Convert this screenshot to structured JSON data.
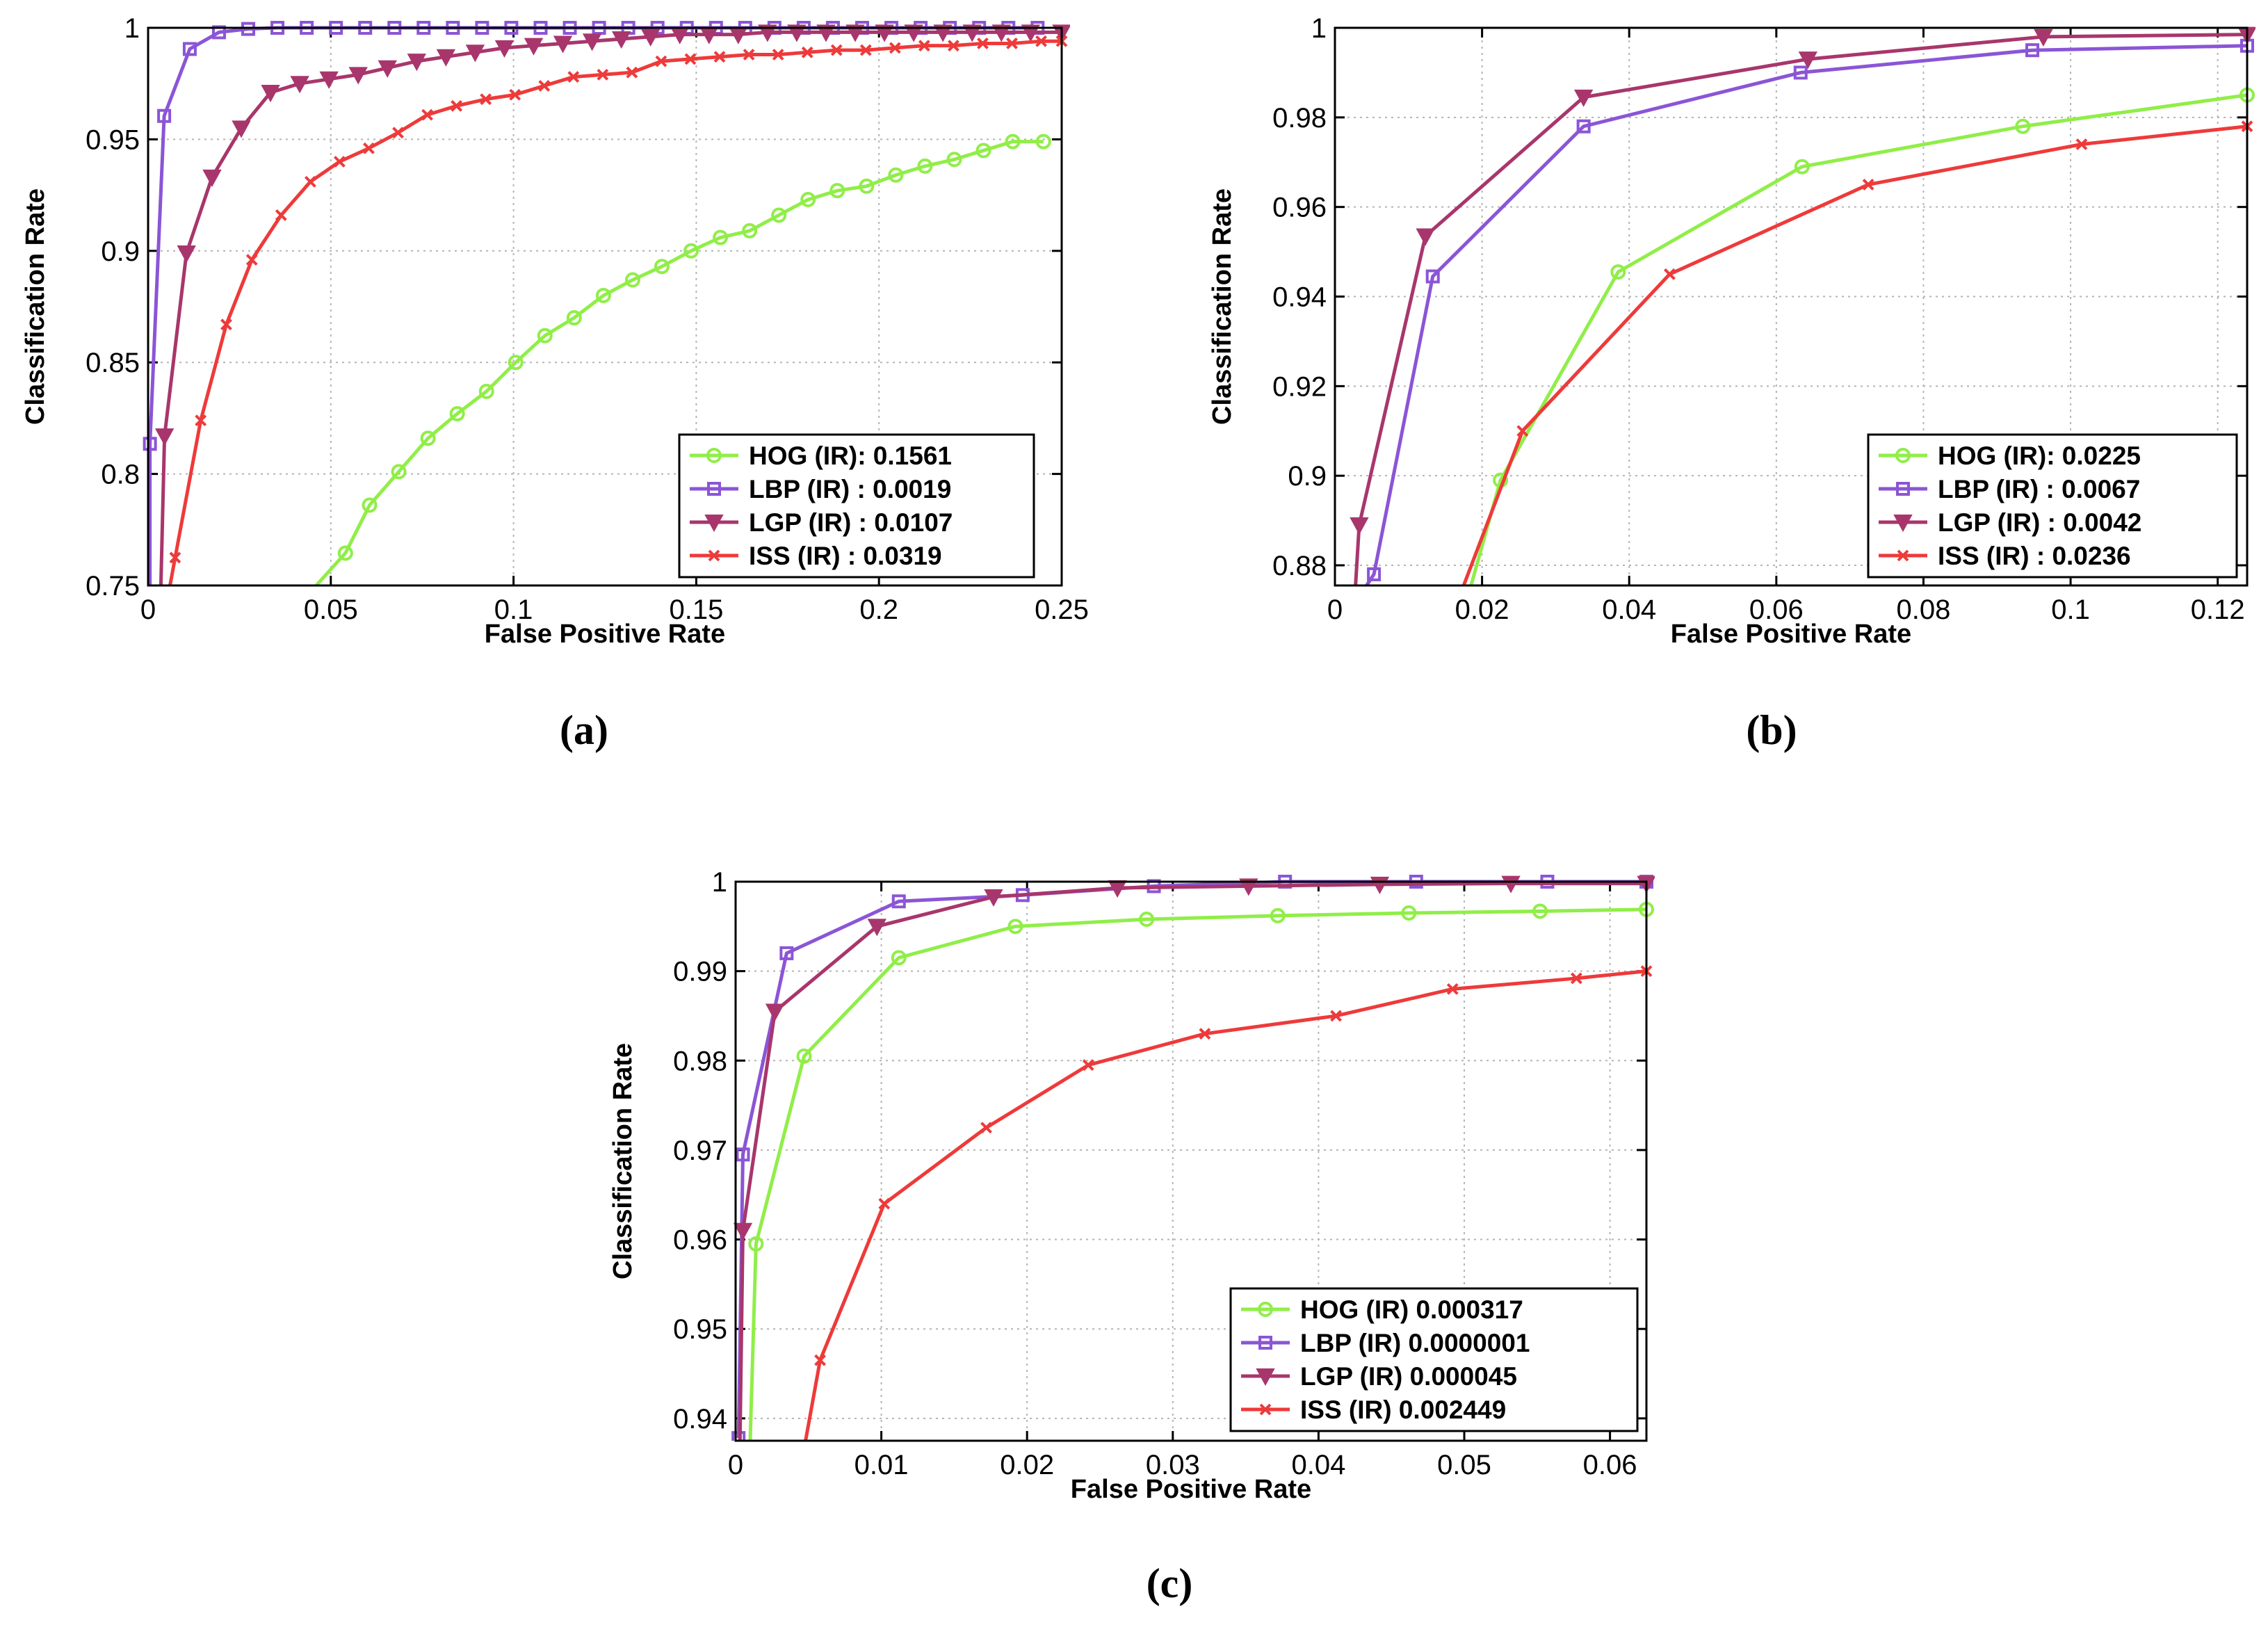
{
  "chart_data": [
    {
      "id": "a",
      "type": "line",
      "caption": "(a)",
      "xlabel": "False Positive Rate",
      "ylabel": "Classification Rate",
      "xlim": [
        0,
        0.25
      ],
      "ylim": [
        0.75,
        1
      ],
      "xticks": [
        "0",
        "0.05",
        "0.1",
        "0.15",
        "0.2",
        "0.25"
      ],
      "yticks": [
        "0.75",
        "0.8",
        "0.85",
        "0.9",
        "0.95",
        "1"
      ],
      "grid": true,
      "legend_position": "bottom-right",
      "series": [
        {
          "name": "HOG (IR): 0.1561",
          "color": "#90ee48",
          "marker": "circle",
          "x": [
            0.046,
            0.054,
            0.0606,
            0.0686,
            0.0766,
            0.0846,
            0.0926,
            0.1006,
            0.1086,
            0.1166,
            0.1246,
            0.1326,
            0.1406,
            0.1486,
            0.1566,
            0.1646,
            0.1726,
            0.1806,
            0.1886,
            0.1966,
            0.2046,
            0.2126,
            0.2206,
            0.2286,
            0.2366,
            0.245
          ],
          "y": [
            0.75,
            0.7645,
            0.786,
            0.801,
            0.816,
            0.827,
            0.837,
            0.85,
            0.862,
            0.87,
            0.88,
            0.887,
            0.893,
            0.9,
            0.906,
            0.909,
            0.916,
            0.923,
            0.927,
            0.929,
            0.934,
            0.938,
            0.941,
            0.945,
            0.949,
            0.949
          ]
        },
        {
          "name": "LBP (IR) : 0.0019",
          "color": "#8b55d6",
          "marker": "square",
          "x": [
            0.0005,
            0.0005,
            0.0044,
            0.0114,
            0.0194,
            0.0274,
            0.0354,
            0.0434,
            0.0514,
            0.0594,
            0.0674,
            0.0754,
            0.0834,
            0.0914,
            0.0994,
            0.1074,
            0.1154,
            0.1234,
            0.1314,
            0.1394,
            0.1474,
            0.1554,
            0.1634,
            0.1714,
            0.1794,
            0.1874,
            0.1954,
            0.2034,
            0.2114,
            0.2194,
            0.2274,
            0.2354,
            0.2434
          ],
          "y": [
            0.75,
            0.8135,
            0.9605,
            0.9905,
            0.998,
            0.9995,
            1,
            1,
            1,
            1,
            1,
            1,
            1,
            1,
            1,
            1,
            1,
            1,
            1,
            1,
            1,
            1,
            1,
            1,
            1,
            1,
            1,
            1,
            1,
            1,
            1,
            1,
            1
          ]
        },
        {
          "name": "LGP (IR) : 0.0107",
          "color": "#a8366c",
          "marker": "triangle",
          "x": [
            0.0035,
            0.0045,
            0.0105,
            0.0175,
            0.0255,
            0.0335,
            0.0415,
            0.0495,
            0.0575,
            0.0655,
            0.0735,
            0.0815,
            0.0895,
            0.0975,
            0.1055,
            0.1135,
            0.1215,
            0.1295,
            0.1375,
            0.1455,
            0.1535,
            0.1615,
            0.1695,
            0.1775,
            0.1855,
            0.1935,
            0.2015,
            0.2095,
            0.2175,
            0.2255,
            0.2335,
            0.2415,
            0.25
          ],
          "y": [
            0.75,
            0.817,
            0.899,
            0.933,
            0.955,
            0.971,
            0.975,
            0.977,
            0.979,
            0.982,
            0.985,
            0.987,
            0.989,
            0.991,
            0.992,
            0.993,
            0.994,
            0.995,
            0.996,
            0.997,
            0.997,
            0.997,
            0.998,
            0.998,
            0.998,
            0.998,
            0.998,
            0.998,
            0.998,
            0.998,
            0.998,
            0.998,
            0.998
          ]
        },
        {
          "name": "ISS (IR) : 0.0319",
          "color": "#ee3a3a",
          "marker": "x",
          "x": [
            0.006,
            0.0074,
            0.0144,
            0.0214,
            0.0284,
            0.0364,
            0.0444,
            0.0524,
            0.0604,
            0.0684,
            0.0764,
            0.0844,
            0.0924,
            0.1004,
            0.1084,
            0.1164,
            0.1244,
            0.1324,
            0.1404,
            0.1484,
            0.1564,
            0.1644,
            0.1724,
            0.1804,
            0.1884,
            0.1964,
            0.2044,
            0.2124,
            0.2204,
            0.2284,
            0.2364,
            0.2444,
            0.25
          ],
          "y": [
            0.75,
            0.7625,
            0.824,
            0.867,
            0.896,
            0.916,
            0.931,
            0.94,
            0.946,
            0.953,
            0.961,
            0.965,
            0.968,
            0.97,
            0.974,
            0.978,
            0.979,
            0.98,
            0.985,
            0.986,
            0.987,
            0.988,
            0.988,
            0.989,
            0.99,
            0.99,
            0.991,
            0.992,
            0.992,
            0.993,
            0.993,
            0.994,
            0.994
          ]
        }
      ]
    },
    {
      "id": "b",
      "type": "line",
      "caption": "(b)",
      "xlabel": "False Positive Rate",
      "ylabel": "Classification Rate",
      "xlim": [
        0,
        0.124
      ],
      "ylim": [
        0.8755,
        1
      ],
      "xticks": [
        "0",
        "0.02",
        "0.04",
        "0.06",
        "0.08",
        "0.1",
        "0.12"
      ],
      "yticks": [
        "0.88",
        "0.9",
        "0.92",
        "0.94",
        "0.96",
        "0.98",
        "1"
      ],
      "grid": true,
      "legend_position": "bottom-right",
      "series": [
        {
          "name": "HOG (IR): 0.0225",
          "color": "#90ee48",
          "marker": "circle",
          "x": [
            0.0185,
            0.0225,
            0.0385,
            0.0635,
            0.0935,
            0.124
          ],
          "y": [
            0.8755,
            0.899,
            0.9455,
            0.969,
            0.978,
            0.985
          ]
        },
        {
          "name": "LBP (IR) : 0.0067",
          "color": "#8b55d6",
          "marker": "square",
          "x": [
            0.0043,
            0.0053,
            0.0133,
            0.0338,
            0.0633,
            0.0948,
            0.124
          ],
          "y": [
            0.8755,
            0.878,
            0.9445,
            0.978,
            0.99,
            0.995,
            0.996
          ]
        },
        {
          "name": "LGP (IR) : 0.0042",
          "color": "#a8366c",
          "marker": "triangle",
          "x": [
            0.0028,
            0.0033,
            0.0123,
            0.0338,
            0.0643,
            0.0963,
            0.124
          ],
          "y": [
            0.8755,
            0.889,
            0.9535,
            0.9845,
            0.993,
            0.998,
            0.9985
          ]
        },
        {
          "name": "ISS (IR) : 0.0236",
          "color": "#ee3a3a",
          "marker": "x",
          "x": [
            0.0175,
            0.0255,
            0.0455,
            0.0725,
            0.1015,
            0.124
          ],
          "y": [
            0.8755,
            0.91,
            0.945,
            0.965,
            0.974,
            0.978
          ]
        }
      ]
    },
    {
      "id": "c",
      "type": "line",
      "caption": "(c)",
      "xlabel": "False Positive Rate",
      "ylabel": "Classification Rate",
      "xlim": [
        0,
        0.0625
      ],
      "ylim": [
        0.9375,
        1
      ],
      "xticks": [
        "0",
        "0.01",
        "0.02",
        "0.03",
        "0.04",
        "0.05",
        "0.06"
      ],
      "yticks": [
        "0.94",
        "0.95",
        "0.96",
        "0.97",
        "0.98",
        "0.99",
        "1"
      ],
      "grid": true,
      "legend_position": "bottom-right",
      "series": [
        {
          "name": "HOG (IR) 0.000317",
          "color": "#90ee48",
          "marker": "circle",
          "x": [
            0.001,
            0.0014,
            0.0047,
            0.0112,
            0.0192,
            0.0282,
            0.0372,
            0.0462,
            0.0552,
            0.0625
          ],
          "y": [
            0.9375,
            0.9595,
            0.9805,
            0.9915,
            0.995,
            0.9958,
            0.9962,
            0.9965,
            0.9967,
            0.9969
          ]
        },
        {
          "name": "LBP (IR) 0.0000001",
          "color": "#8b55d6",
          "marker": "square",
          "x": [
            0.0002,
            0.0005,
            0.0035,
            0.0112,
            0.0197,
            0.0287,
            0.0377,
            0.0467,
            0.0557,
            0.0625
          ],
          "y": [
            0.9378,
            0.9695,
            0.992,
            0.9978,
            0.9985,
            0.9995,
            1,
            1,
            1,
            1
          ]
        },
        {
          "name": "LGP (IR) 0.000045",
          "color": "#a8366c",
          "marker": "triangle",
          "x": [
            0.0003,
            0.0005,
            0.0027,
            0.0097,
            0.0177,
            0.0262,
            0.0352,
            0.0442,
            0.0532,
            0.0625
          ],
          "y": [
            0.9375,
            0.961,
            0.9855,
            0.995,
            0.9983,
            0.9993,
            0.9995,
            0.9997,
            0.9998,
            0.9998
          ]
        },
        {
          "name": "ISS (IR) 0.002449",
          "color": "#ee3a3a",
          "marker": "x",
          "x": [
            0.0048,
            0.0058,
            0.0102,
            0.0172,
            0.0242,
            0.0322,
            0.0412,
            0.0492,
            0.0577,
            0.0625
          ],
          "y": [
            0.9375,
            0.9465,
            0.964,
            0.9725,
            0.9795,
            0.983,
            0.985,
            0.988,
            0.9892,
            0.99
          ]
        }
      ]
    }
  ]
}
